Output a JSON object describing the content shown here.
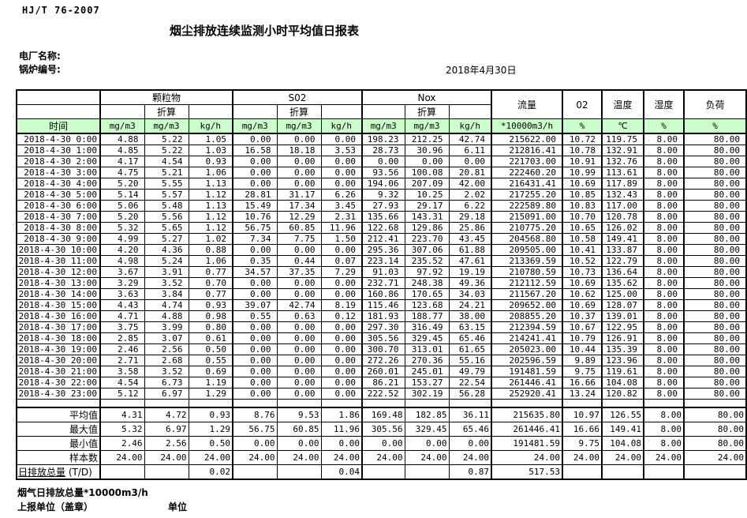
{
  "document": {
    "standard": "HJ/T  76-2007",
    "title": "烟尘排放连续监测小时平均值日报表",
    "plant_label": "电厂名称:",
    "boiler_label": "锅炉编号:",
    "date": "2018年4月30日",
    "footer_flow_total_label": "烟气日排放总量*10000m3/h",
    "footer_report_unit_label": "上报单位（盖章）",
    "footer_unit_label": "单位"
  },
  "colors": {
    "header_green": "#ccffcc"
  },
  "table": {
    "header": {
      "time_label": "时间",
      "groups": [
        {
          "name": "颗粒物",
          "sub": "折算"
        },
        {
          "name": "S02",
          "sub": "折算"
        },
        {
          "name": "Nox",
          "sub": "折算"
        }
      ],
      "single_cols": [
        "流量",
        "02",
        "温度",
        "湿度",
        "负荷"
      ],
      "units": [
        "mg/m3",
        "mg/m3",
        "kg/h",
        "mg/m3",
        "mg/m3",
        "kg/h",
        "mg/m3",
        "mg/m3",
        "kg/h",
        "*10000m3/h",
        "%",
        "℃",
        "%",
        "%"
      ]
    },
    "rows": [
      [
        "2018-4-30 0:00",
        "4.88",
        "5.22",
        "1.05",
        "0.00",
        "0.00",
        "0.00",
        "198.23",
        "212.25",
        "42.74",
        "215622.00",
        "10.72",
        "119.75",
        "8.00",
        "80.00"
      ],
      [
        "2018-4-30 1:00",
        "4.85",
        "5.22",
        "1.03",
        "16.58",
        "18.18",
        "3.53",
        "28.73",
        "30.96",
        "6.11",
        "212816.41",
        "10.78",
        "132.91",
        "8.00",
        "80.00"
      ],
      [
        "2018-4-30 2:00",
        "4.17",
        "4.54",
        "0.93",
        "0.00",
        "0.00",
        "0.00",
        "0.00",
        "0.00",
        "0.00",
        "221703.00",
        "10.91",
        "132.76",
        "8.00",
        "80.00"
      ],
      [
        "2018-4-30 3:00",
        "4.75",
        "5.21",
        "1.06",
        "0.00",
        "0.00",
        "0.00",
        "93.56",
        "100.08",
        "20.81",
        "222460.20",
        "10.99",
        "113.61",
        "8.00",
        "80.00"
      ],
      [
        "2018-4-30 4:00",
        "5.20",
        "5.55",
        "1.13",
        "0.00",
        "0.00",
        "0.00",
        "194.06",
        "207.09",
        "42.00",
        "216431.41",
        "10.69",
        "117.89",
        "8.00",
        "80.00"
      ],
      [
        "2018-4-30 5:00",
        "5.14",
        "5.57",
        "1.12",
        "28.81",
        "31.17",
        "6.26",
        "9.32",
        "10.25",
        "2.02",
        "217255.20",
        "10.85",
        "132.43",
        "8.00",
        "80.00"
      ],
      [
        "2018-4-30 6:00",
        "5.06",
        "5.48",
        "1.13",
        "15.49",
        "17.34",
        "3.45",
        "27.93",
        "29.17",
        "6.22",
        "222589.80",
        "10.83",
        "117.00",
        "8.00",
        "80.00"
      ],
      [
        "2018-4-30 7:00",
        "5.20",
        "5.56",
        "1.12",
        "10.76",
        "12.29",
        "2.31",
        "135.66",
        "143.31",
        "29.18",
        "215091.00",
        "10.70",
        "120.78",
        "8.00",
        "80.00"
      ],
      [
        "2018-4-30 8:00",
        "5.32",
        "5.65",
        "1.12",
        "56.75",
        "60.85",
        "11.96",
        "122.68",
        "129.86",
        "25.86",
        "210775.20",
        "10.65",
        "126.02",
        "8.00",
        "80.00"
      ],
      [
        "2018-4-30 9:00",
        "4.99",
        "5.27",
        "1.02",
        "7.34",
        "7.75",
        "1.50",
        "212.41",
        "223.70",
        "43.45",
        "204568.80",
        "10.58",
        "149.41",
        "8.00",
        "80.00"
      ],
      [
        "2018-4-30 10:00",
        "4.20",
        "4.36",
        "0.88",
        "0.00",
        "0.00",
        "0.00",
        "295.36",
        "307.06",
        "61.88",
        "209505.00",
        "10.41",
        "133.87",
        "8.00",
        "80.00"
      ],
      [
        "2018-4-30 11:00",
        "4.98",
        "5.24",
        "1.06",
        "0.35",
        "0.44",
        "0.07",
        "223.14",
        "235.52",
        "47.61",
        "213369.59",
        "10.52",
        "122.79",
        "8.00",
        "80.00"
      ],
      [
        "2018-4-30 12:00",
        "3.67",
        "3.91",
        "0.77",
        "34.57",
        "37.35",
        "7.29",
        "91.03",
        "97.92",
        "19.19",
        "210780.59",
        "10.73",
        "136.64",
        "8.00",
        "80.00"
      ],
      [
        "2018-4-30 13:00",
        "3.29",
        "3.52",
        "0.70",
        "0.00",
        "0.00",
        "0.00",
        "232.71",
        "248.38",
        "49.36",
        "212112.59",
        "10.69",
        "135.62",
        "8.00",
        "80.00"
      ],
      [
        "2018-4-30 14:00",
        "3.63",
        "3.84",
        "0.77",
        "0.00",
        "0.00",
        "0.00",
        "160.86",
        "170.65",
        "34.03",
        "211567.20",
        "10.62",
        "125.00",
        "8.00",
        "80.00"
      ],
      [
        "2018-4-30 15:00",
        "4.43",
        "4.74",
        "0.93",
        "39.07",
        "42.74",
        "8.19",
        "115.46",
        "123.68",
        "24.21",
        "209652.00",
        "10.69",
        "128.07",
        "8.00",
        "80.00"
      ],
      [
        "2018-4-30 16:00",
        "4.71",
        "4.88",
        "0.98",
        "0.55",
        "0.63",
        "0.12",
        "181.93",
        "188.77",
        "38.00",
        "208855.20",
        "10.37",
        "139.01",
        "8.00",
        "80.00"
      ],
      [
        "2018-4-30 17:00",
        "3.75",
        "3.99",
        "0.80",
        "0.00",
        "0.00",
        "0.00",
        "297.30",
        "316.49",
        "63.15",
        "212394.59",
        "10.67",
        "122.95",
        "8.00",
        "80.00"
      ],
      [
        "2018-4-30 18:00",
        "2.85",
        "3.07",
        "0.61",
        "0.00",
        "0.00",
        "0.00",
        "305.56",
        "329.45",
        "65.46",
        "214241.41",
        "10.79",
        "126.91",
        "8.00",
        "80.00"
      ],
      [
        "2018-4-30 19:00",
        "2.46",
        "2.56",
        "0.50",
        "0.00",
        "0.00",
        "0.00",
        "300.70",
        "313.01",
        "61.65",
        "205023.00",
        "10.44",
        "135.39",
        "8.00",
        "80.00"
      ],
      [
        "2018-4-30 20:00",
        "2.71",
        "2.68",
        "0.55",
        "0.00",
        "0.00",
        "0.00",
        "272.26",
        "270.36",
        "55.16",
        "202596.59",
        "9.89",
        "123.96",
        "8.00",
        "80.00"
      ],
      [
        "2018-4-30 21:00",
        "3.58",
        "3.52",
        "0.69",
        "0.00",
        "0.00",
        "0.00",
        "260.01",
        "245.01",
        "49.79",
        "191481.59",
        "9.75",
        "119.61",
        "8.00",
        "80.00"
      ],
      [
        "2018-4-30 22:00",
        "4.54",
        "6.73",
        "1.19",
        "0.00",
        "0.00",
        "0.00",
        "86.21",
        "153.27",
        "22.54",
        "261446.41",
        "16.66",
        "104.08",
        "8.00",
        "80.00"
      ],
      [
        "2018-4-30 23:00",
        "5.12",
        "6.97",
        "1.29",
        "0.00",
        "0.00",
        "0.00",
        "222.52",
        "302.19",
        "56.28",
        "252920.41",
        "13.24",
        "120.82",
        "8.00",
        "80.00"
      ]
    ],
    "summary": [
      {
        "label": "平均值",
        "values": [
          "4.31",
          "4.72",
          "0.93",
          "8.76",
          "9.53",
          "1.86",
          "169.48",
          "182.85",
          "36.11",
          "215635.80",
          "10.97",
          "126.55",
          "8.00",
          "80.00"
        ]
      },
      {
        "label": "最大值",
        "values": [
          "5.32",
          "6.97",
          "1.29",
          "56.75",
          "60.85",
          "11.96",
          "305.56",
          "329.45",
          "65.46",
          "261446.41",
          "16.66",
          "149.41",
          "8.00",
          "80.00"
        ]
      },
      {
        "label": "最小值",
        "values": [
          "2.46",
          "2.56",
          "0.50",
          "0.00",
          "0.00",
          "0.00",
          "0.00",
          "0.00",
          "0.00",
          "191481.59",
          "9.75",
          "104.08",
          "8.00",
          "80.00"
        ]
      },
      {
        "label": "样本数",
        "values": [
          "24.00",
          "24.00",
          "24.00",
          "24.00",
          "24.00",
          "24.00",
          "24.00",
          "24.00",
          "24.00",
          "24.00",
          "24.00",
          "24.00",
          "24.00",
          "24.00"
        ]
      }
    ],
    "daily_total": {
      "label_main": "日排放总量",
      "label_suffix": " (T/D)",
      "values": [
        "",
        "",
        "0.02",
        "",
        "",
        "0.04",
        "",
        "",
        "0.87",
        "517.53",
        "",
        "",
        "",
        ""
      ]
    }
  }
}
